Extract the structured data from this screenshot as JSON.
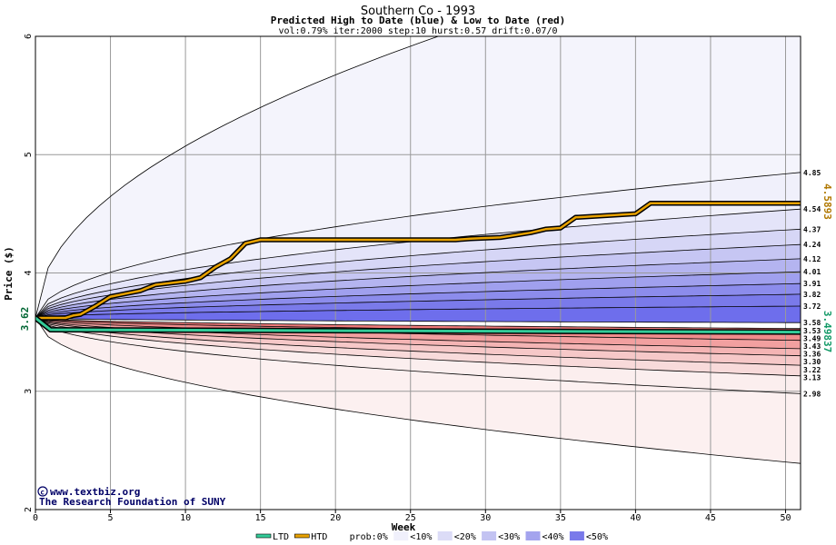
{
  "chart_data": {
    "type": "area",
    "title": "Southern Co - 1993",
    "subtitle": "Predicted High to Date (blue) &  Low to Date (red)",
    "params": "vol:0.79% iter:2000 step:10 hurst:0.57 drift:0.07/0",
    "xlabel": "Week",
    "ylabel": "Price ($)",
    "xlim": [
      0,
      51
    ],
    "ylim": [
      2,
      6
    ],
    "x_ticks": [
      0,
      5,
      10,
      15,
      20,
      25,
      30,
      35,
      40,
      45,
      50
    ],
    "y_ticks": [
      2,
      3,
      4,
      5,
      6
    ],
    "start_price": 3.62,
    "start_price_label": "3.62",
    "final_high_label": "4.5893",
    "final_low_label": "3.49837",
    "right_labels": [
      "4.85",
      "4.54",
      "4.37",
      "4.24",
      "4.12",
      "4.01",
      "3.91",
      "3.82",
      "3.72",
      "3.58",
      "3.53",
      "3.49",
      "3.43",
      "3.36",
      "3.30",
      "3.22",
      "3.13",
      "2.98"
    ],
    "high_bands": [
      4.85,
      4.54,
      4.37,
      4.24,
      4.12,
      4.01,
      3.91,
      3.82,
      3.72,
      3.58
    ],
    "low_bands": [
      3.53,
      3.49,
      3.43,
      3.36,
      3.3,
      3.22,
      3.13,
      2.98
    ],
    "outer_high_end": 6.9,
    "outer_low_end": 2.39,
    "high_to_date": {
      "x": [
        0,
        1,
        2,
        2.5,
        3,
        4,
        5,
        7,
        8,
        10,
        11,
        12,
        13,
        14,
        15,
        20,
        25,
        28,
        29,
        31,
        33,
        34,
        35,
        36,
        40,
        41,
        45,
        51
      ],
      "y": [
        3.62,
        3.62,
        3.62,
        3.64,
        3.65,
        3.72,
        3.8,
        3.85,
        3.9,
        3.93,
        3.96,
        4.05,
        4.12,
        4.25,
        4.28,
        4.28,
        4.28,
        4.28,
        4.29,
        4.3,
        4.34,
        4.37,
        4.38,
        4.47,
        4.5,
        4.59,
        4.59,
        4.59
      ]
    },
    "low_to_date": {
      "x": [
        0,
        1,
        25,
        51
      ],
      "y": [
        3.62,
        3.52,
        3.51,
        3.5
      ]
    },
    "colors": {
      "high": "#e8a200",
      "low": "#33cc99",
      "blue_band": "#6a6aee",
      "red_band": "#ee6a6a"
    },
    "legend": [
      {
        "label": "LTD",
        "swatch": "#33cc99",
        "kind": "line"
      },
      {
        "label": "HTD",
        "swatch": "#e8a200",
        "kind": "line"
      },
      {
        "label": "prob:0%",
        "swatch": "#ffffff",
        "kind": "box"
      },
      {
        "label": "<10%",
        "swatch": "#f0f0fb",
        "kind": "box"
      },
      {
        "label": "<20%",
        "swatch": "#dcdcf7",
        "kind": "box"
      },
      {
        "label": "<30%",
        "swatch": "#c3c3f2",
        "kind": "box"
      },
      {
        "label": "<40%",
        "swatch": "#a4a4ee",
        "kind": "box"
      },
      {
        "label": "<50%",
        "swatch": "#7a7aea",
        "kind": "box"
      }
    ]
  },
  "credits": {
    "site": "www.textbiz.org",
    "org": "The Research Foundation of SUNY"
  }
}
